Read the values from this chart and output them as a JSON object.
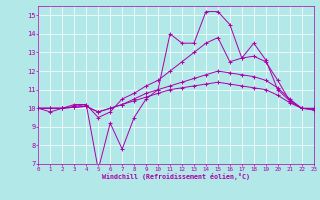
{
  "xlabel": "Windchill (Refroidissement éolien,°C)",
  "background_color": "#b2e8e8",
  "grid_color": "#ffffff",
  "line_color": "#aa00aa",
  "x": [
    0,
    1,
    2,
    3,
    4,
    5,
    6,
    7,
    8,
    9,
    10,
    11,
    12,
    13,
    14,
    15,
    16,
    17,
    18,
    19,
    20,
    21,
    22,
    23
  ],
  "series1": [
    10.0,
    9.8,
    10.0,
    10.2,
    10.2,
    6.7,
    9.2,
    7.8,
    9.5,
    10.5,
    11.0,
    14.0,
    13.5,
    13.5,
    15.2,
    15.2,
    14.5,
    12.7,
    13.5,
    12.6,
    11.0,
    10.4,
    10.0,
    10.0
  ],
  "series2": [
    10.0,
    10.0,
    10.0,
    10.1,
    10.2,
    9.5,
    9.8,
    10.5,
    10.8,
    11.2,
    11.5,
    12.0,
    12.5,
    13.0,
    13.5,
    13.8,
    12.5,
    12.7,
    12.8,
    12.5,
    11.5,
    10.4,
    10.0,
    9.9
  ],
  "series3": [
    10.0,
    10.0,
    10.0,
    10.05,
    10.1,
    9.8,
    10.0,
    10.2,
    10.5,
    10.8,
    11.0,
    11.2,
    11.4,
    11.6,
    11.8,
    12.0,
    11.9,
    11.8,
    11.7,
    11.5,
    11.1,
    10.5,
    10.0,
    9.95
  ],
  "series4": [
    10.0,
    10.0,
    10.0,
    10.05,
    10.1,
    9.8,
    10.0,
    10.2,
    10.4,
    10.6,
    10.8,
    11.0,
    11.1,
    11.2,
    11.3,
    11.4,
    11.3,
    11.2,
    11.1,
    11.0,
    10.7,
    10.3,
    10.0,
    9.95
  ],
  "ylim": [
    7,
    15.5
  ],
  "yticks": [
    7,
    8,
    9,
    10,
    11,
    12,
    13,
    14,
    15
  ],
  "xlim": [
    0,
    23
  ],
  "xticks": [
    0,
    1,
    2,
    3,
    4,
    5,
    6,
    7,
    8,
    9,
    10,
    11,
    12,
    13,
    14,
    15,
    16,
    17,
    18,
    19,
    20,
    21,
    22,
    23
  ]
}
